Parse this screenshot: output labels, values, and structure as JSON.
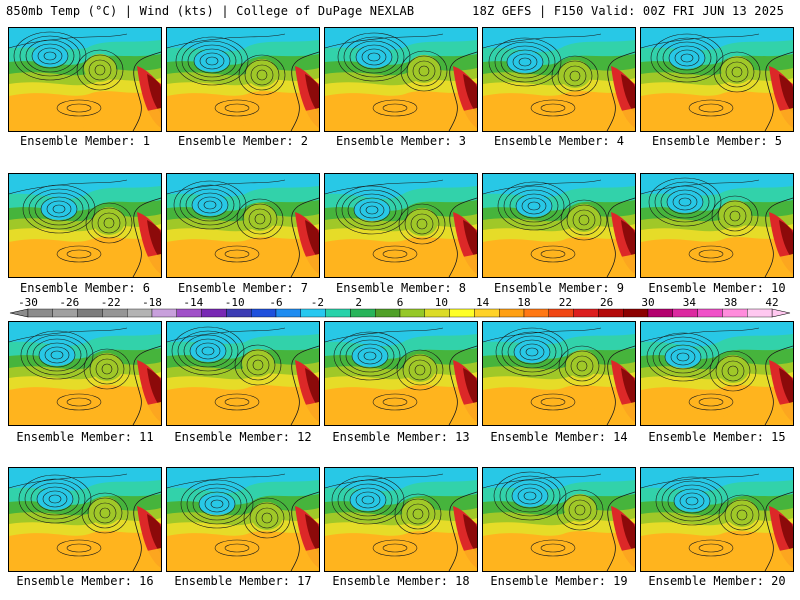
{
  "header": {
    "title_left": "850mb Temp (°C) | Wind (kts) | College of DuPage NEXLAB",
    "title_right": "18Z GEFS | F150 Valid: 00Z FRI JUN 13 2025"
  },
  "member_label_prefix": "Ensemble Member: ",
  "members": [
    "1",
    "2",
    "3",
    "4",
    "5",
    "6",
    "7",
    "8",
    "9",
    "10",
    "11",
    "12",
    "13",
    "14",
    "15",
    "16",
    "17",
    "18",
    "19",
    "20"
  ],
  "colorbar": {
    "ticks": [
      "-30",
      "-26",
      "-22",
      "-18",
      "-14",
      "-10",
      "-6",
      "-2",
      "2",
      "6",
      "10",
      "14",
      "18",
      "22",
      "26",
      "30",
      "34",
      "38",
      "42"
    ],
    "colors": [
      "#8c8c8c",
      "#a0a0a0",
      "#7d7d7d",
      "#969696",
      "#b4b4b4",
      "#c8a0dc",
      "#a050c8",
      "#7828b4",
      "#3c3cb4",
      "#1e50dc",
      "#1e8cf0",
      "#28c8f0",
      "#28d2aa",
      "#28b45a",
      "#50a028",
      "#96c828",
      "#dcdc28",
      "#ffff28",
      "#ffd228",
      "#ffa014",
      "#ff7814",
      "#f04614",
      "#dc1e1e",
      "#b40a0a",
      "#8c0000",
      "#b4006e",
      "#dc28a0",
      "#f050c8",
      "#ff8cdc",
      "#ffc8f0"
    ]
  },
  "map_colors": {
    "polar": "#28c8e6",
    "cool": "#32d2aa",
    "mild": "#46b43c",
    "warm_green": "#a0c828",
    "yellow": "#e6dc28",
    "tropical": "#ffb41e",
    "hot": "#dc2828",
    "extreme": "#8c0a0a",
    "contour": "#1a1a1a"
  }
}
